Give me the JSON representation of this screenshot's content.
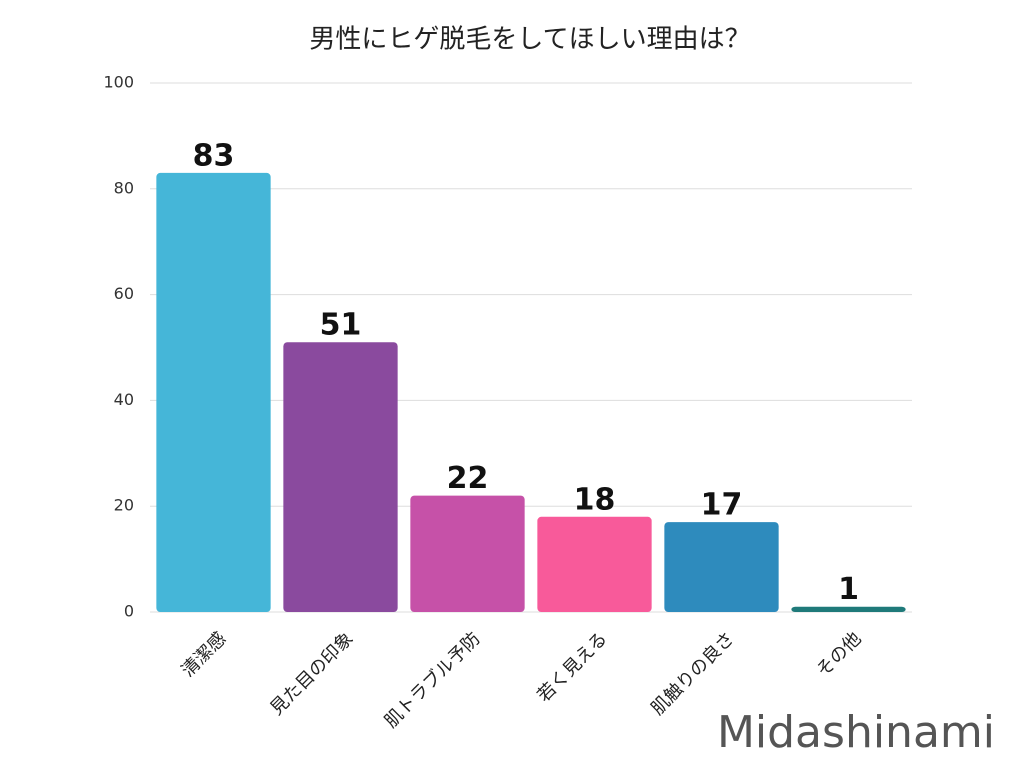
{
  "chart_data": {
    "type": "bar",
    "title": "男性にヒゲ脱毛をしてほしい理由は？",
    "categories": [
      "清潔感",
      "見た目の印象",
      "肌トラブル予防",
      "若く見える",
      "肌触りの良さ",
      "その他"
    ],
    "values": [
      83,
      51,
      22,
      18,
      17,
      1
    ],
    "colors": [
      "#45b6d8",
      "#8a4a9e",
      "#c651a8",
      "#f85a9a",
      "#2e8bbd",
      "#1f7a7a"
    ],
    "ylim": [
      0,
      100
    ],
    "yticks": [
      0,
      20,
      40,
      60,
      80,
      100
    ],
    "grid": true,
    "watermark": "Midashinami"
  }
}
